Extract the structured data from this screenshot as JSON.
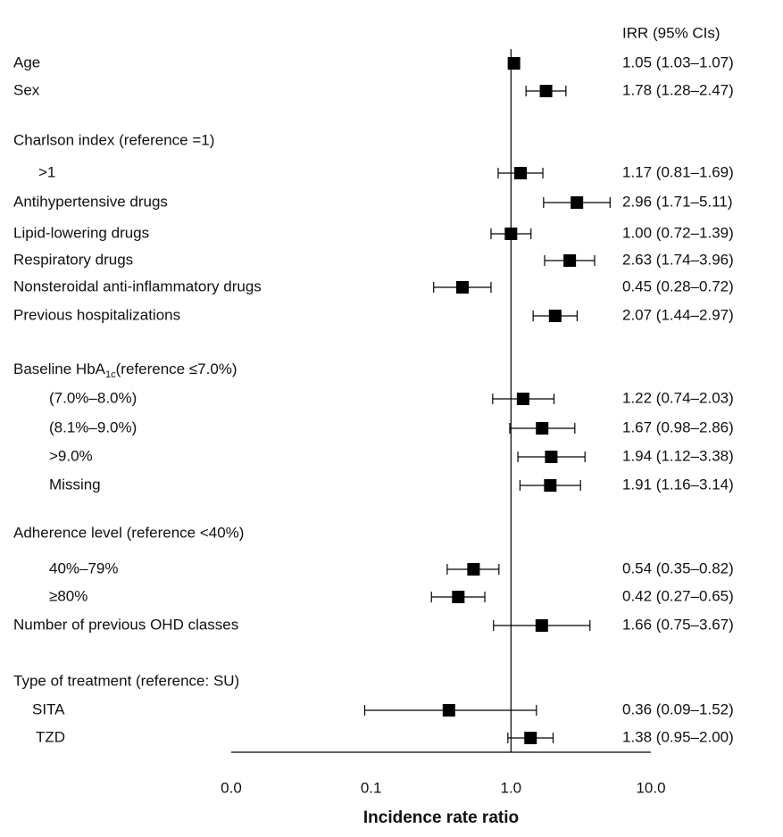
{
  "chart_data": {
    "type": "forest",
    "ci_header": "IRR (95% CIs)",
    "x_label": "Incidence rate ratio",
    "xlim": [
      0.01,
      10
    ],
    "log_x": true,
    "xticks": [
      {
        "value": 0.01,
        "label": "0.0"
      },
      {
        "value": 0.1,
        "label": "0.1"
      },
      {
        "value": 1,
        "label": "1.0"
      },
      {
        "value": 10,
        "label": "10.0"
      }
    ],
    "reference_line": 1,
    "color": "#000000",
    "rows": [
      {
        "label": "Age",
        "value": 1.05,
        "lower": 1.03,
        "upper": 1.07,
        "value_label": "1.05 (1.03–1.07)"
      },
      {
        "label": "Sex",
        "value": 1.78,
        "lower": 1.28,
        "upper": 2.47,
        "value_label": "1.78 (1.28–2.47)"
      },
      {
        "label": "Charlson index (reference =1)"
      },
      {
        "label": ">1",
        "value": 1.17,
        "lower": 0.81,
        "upper": 1.69,
        "value_label": "1.17 (0.81–1.69)"
      },
      {
        "label": "Antihypertensive drugs",
        "value": 2.96,
        "lower": 1.71,
        "upper": 5.11,
        "value_label": "2.96 (1.71–5.11)"
      },
      {
        "label": "Lipid-lowering drugs",
        "value": 1.0,
        "lower": 0.72,
        "upper": 1.39,
        "value_label": "1.00 (0.72–1.39)"
      },
      {
        "label": "Respiratory drugs",
        "value": 2.63,
        "lower": 1.74,
        "upper": 3.96,
        "value_label": "2.63 (1.74–3.96)"
      },
      {
        "label": "Nonsteroidal anti-inflammatory drugs",
        "value": 0.45,
        "lower": 0.28,
        "upper": 0.72,
        "value_label": "0.45 (0.28–0.72)"
      },
      {
        "label": "Previous hospitalizations",
        "value": 2.07,
        "lower": 1.44,
        "upper": 2.97,
        "value_label": "2.07 (1.44–2.97)"
      },
      {
        "label": [
          "Baseline HbA",
          "1c",
          "(reference ≤7.0%)"
        ]
      },
      {
        "label": "(7.0%–8.0%)",
        "value": 1.22,
        "lower": 0.74,
        "upper": 2.03,
        "value_label": "1.22 (0.74–2.03)"
      },
      {
        "label": "(8.1%–9.0%)",
        "value": 1.67,
        "lower": 0.98,
        "upper": 2.86,
        "value_label": "1.67 (0.98–2.86)"
      },
      {
        "label": ">9.0%",
        "value": 1.94,
        "lower": 1.12,
        "upper": 3.38,
        "value_label": "1.94 (1.12–3.38)"
      },
      {
        "label": "Missing",
        "value": 1.91,
        "lower": 1.16,
        "upper": 3.14,
        "value_label": "1.91 (1.16–3.14)"
      },
      {
        "label": "Adherence level (reference <40%)"
      },
      {
        "label": "40%–79%",
        "value": 0.54,
        "lower": 0.35,
        "upper": 0.82,
        "value_label": "0.54 (0.35–0.82)"
      },
      {
        "label": "≥80%",
        "value": 0.42,
        "lower": 0.27,
        "upper": 0.65,
        "value_label": "0.42 (0.27–0.65)"
      },
      {
        "label": "Number of previous OHD classes",
        "value": 1.66,
        "lower": 0.75,
        "upper": 3.67,
        "value_label": "1.66 (0.75–3.67)"
      },
      {
        "label": "Type of treatment (reference: SU)"
      },
      {
        "label": "SITA",
        "value": 0.36,
        "lower": 0.09,
        "upper": 1.52,
        "value_label": "0.36 (0.09–1.52)"
      },
      {
        "label": "TZD",
        "value": 1.38,
        "lower": 0.95,
        "upper": 2.0,
        "value_label": "1.38 (0.95–2.00)"
      }
    ]
  }
}
